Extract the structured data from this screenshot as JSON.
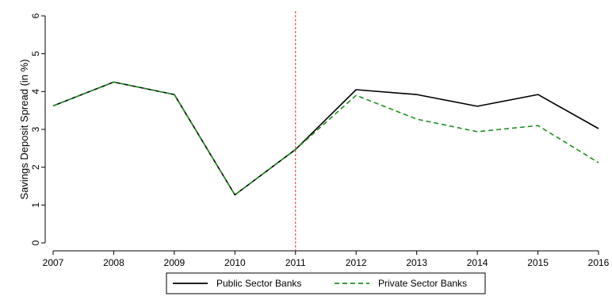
{
  "chart_data": {
    "type": "line",
    "x": [
      2007,
      2008,
      2009,
      2010,
      2011,
      2012,
      2013,
      2014,
      2015,
      2016
    ],
    "xlim": [
      2007,
      2016
    ],
    "ylim": [
      0,
      6
    ],
    "y_ticks": [
      0,
      1,
      2,
      3,
      4,
      5,
      6
    ],
    "ylabel": "Savings Deposit Spread (in %)",
    "xlabel": "",
    "grid": false,
    "legend_position": "bottom",
    "vertical_reference_line": {
      "x": 2011,
      "color": "#e8322e",
      "style": "dashed"
    },
    "series": [
      {
        "name": "Public Sector Banks",
        "color": "#000000",
        "style": "solid",
        "values": [
          3.62,
          4.25,
          3.92,
          1.27,
          2.47,
          4.05,
          3.92,
          3.61,
          3.92,
          3.02
        ]
      },
      {
        "name": "Private Sector Banks",
        "color": "#1f8f1f",
        "style": "dashed",
        "values": [
          3.62,
          4.25,
          3.92,
          1.27,
          2.47,
          3.9,
          3.27,
          2.94,
          3.1,
          2.12
        ]
      }
    ]
  }
}
